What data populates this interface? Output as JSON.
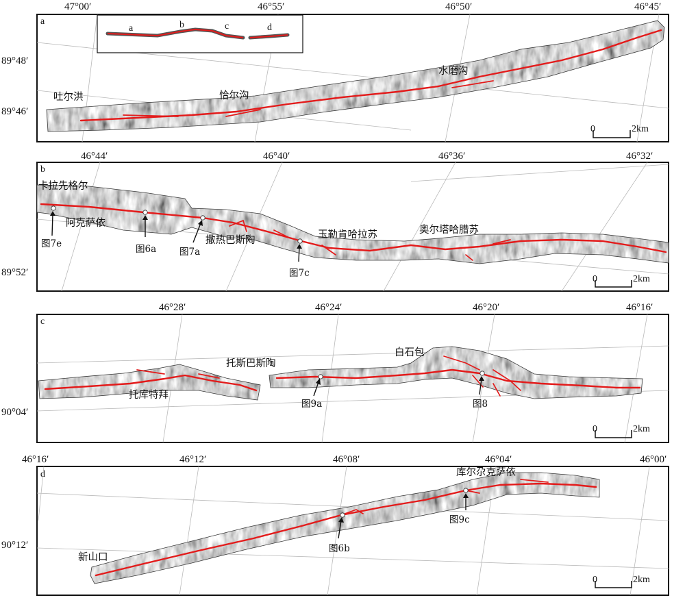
{
  "panels": [
    {
      "id": "a",
      "label": "a",
      "lon_ticks": [
        "47°00′",
        "46°55′",
        "46°50′",
        "46°45′"
      ],
      "lat_ticks": [
        "89°48′",
        "89°46′"
      ],
      "places": [
        "吐尔洪",
        "恰尔沟",
        "水磨沟"
      ],
      "figure_refs": [],
      "scalebar": {
        "start": "0",
        "end": "2km"
      }
    },
    {
      "id": "b",
      "label": "b",
      "lon_ticks": [
        "46°44′",
        "46°40′",
        "46°36′",
        "46°32′"
      ],
      "lat_ticks": [
        "89°52′"
      ],
      "places": [
        "卡拉先格尔",
        "阿克萨依",
        "撒热巴斯陶",
        "玉勒肯哈拉苏",
        "奥尔塔哈腊苏"
      ],
      "figure_refs": [
        "图7e",
        "图6a",
        "图7a",
        "图7c"
      ],
      "scalebar": {
        "start": "0",
        "end": "2km"
      }
    },
    {
      "id": "c",
      "label": "c",
      "lon_ticks": [
        "46°28′",
        "46°24′",
        "46°20′",
        "46°16′"
      ],
      "lat_ticks": [
        "90°04′"
      ],
      "places": [
        "托斯巴斯陶",
        "白石包",
        "托库特拜"
      ],
      "figure_refs": [
        "图9a",
        "图8"
      ],
      "scalebar": {
        "start": "0",
        "end": "2km"
      }
    },
    {
      "id": "d",
      "label": "d",
      "lon_ticks": [
        "46°16′",
        "46°12′",
        "46°08′",
        "46°04′",
        "46°00′"
      ],
      "lat_ticks": [
        "90°12′"
      ],
      "places": [
        "库尔尕克萨依",
        "新山口"
      ],
      "figure_refs": [
        "图6b",
        "图9c"
      ],
      "scalebar": {
        "start": "0",
        "end": "2km"
      }
    }
  ],
  "inset": {
    "labels": [
      "a",
      "b",
      "c",
      "d"
    ]
  },
  "colors": {
    "fault_trace": "#e31b1b",
    "hillshade": "#8a8a8a",
    "frame": "#111111"
  }
}
